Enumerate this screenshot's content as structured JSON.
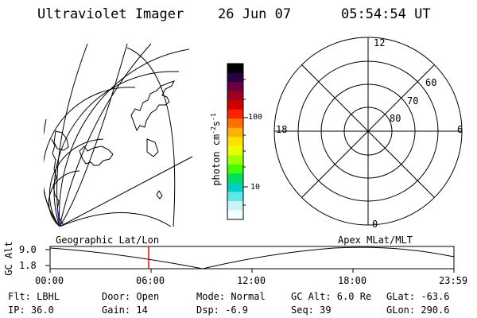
{
  "header": {
    "title": "Ultraviolet Imager",
    "date": "26 Jun 07",
    "time": "05:54:54 UT"
  },
  "colorbar": {
    "unit_main": "photon cm",
    "unit_exp1": "-2",
    "unit_mid": "s",
    "unit_exp2": "-1",
    "tick_hi": "100",
    "tick_lo": "10",
    "colors": [
      "#000000",
      "#2a0040",
      "#6a0040",
      "#a00020",
      "#d00000",
      "#ff2000",
      "#ff7000",
      "#ffb000",
      "#ffe000",
      "#e8ff00",
      "#a0ff00",
      "#40ff00",
      "#00e060",
      "#00d0c0",
      "#60e8e8",
      "#c8f4f4",
      "#f4ffff"
    ]
  },
  "polar": {
    "mlt_top": "12",
    "mlt_left": "18",
    "mlt_right": "6",
    "mlt_bottom": "0",
    "lat_60": "60",
    "lat_70": "70",
    "lat_80": "80"
  },
  "strip": {
    "left_label": "Geographic Lat/Lon",
    "right_label": "Apex MLat/MLT",
    "y_axis_label": "GC Alt",
    "y_max": "9.0",
    "y_min": "1.8",
    "x_ticks": [
      "00:00",
      "06:00",
      "12:00",
      "18:00",
      "23:59"
    ],
    "cursor_color": "#ff0000"
  },
  "status": {
    "flt": "Flt: LBHL",
    "door": "Door: Open",
    "mode": "Mode: Normal",
    "gc_alt": "GC Alt: 6.0 Re",
    "glat": "GLat: -63.6",
    "ip": "IP: 36.0",
    "gain": "Gain: 14",
    "dsp": "Dsp:   -6.9",
    "seq": "Seq: 39",
    "glon": "GLon: 290.6"
  }
}
